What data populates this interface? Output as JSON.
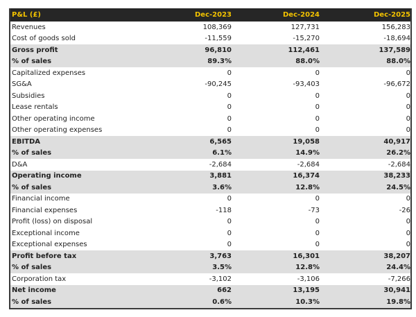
{
  "header": {
    "title": "P&L (£)",
    "columns": [
      "Dec-2023",
      "Dec-2024",
      "Dec-2025"
    ]
  },
  "colors": {
    "header_bg": "#262626",
    "header_text": "#f2c200",
    "subtotal_bg": "#dedede"
  },
  "rows": [
    {
      "label": "Revenues",
      "values": [
        "108,369",
        "127,731",
        "156,283"
      ],
      "bold": false
    },
    {
      "label": "Cost of goods sold",
      "values": [
        "-11,559",
        "-15,270",
        "-18,694"
      ],
      "bold": false
    },
    {
      "label": "Gross profit",
      "values": [
        "96,810",
        "112,461",
        "137,589"
      ],
      "bold": true
    },
    {
      "label": "% of sales",
      "values": [
        "89.3%",
        "88.0%",
        "88.0%"
      ],
      "bold": true
    },
    {
      "label": "Capitalized expenses",
      "values": [
        "0",
        "0",
        "0"
      ],
      "bold": false
    },
    {
      "label": "SG&A",
      "values": [
        "-90,245",
        "-93,403",
        "-96,672"
      ],
      "bold": false
    },
    {
      "label": "Subsidies",
      "values": [
        "0",
        "0",
        "0"
      ],
      "bold": false
    },
    {
      "label": "Lease rentals",
      "values": [
        "0",
        "0",
        "0"
      ],
      "bold": false
    },
    {
      "label": "Other operating income",
      "values": [
        "0",
        "0",
        "0"
      ],
      "bold": false
    },
    {
      "label": "Other operating expenses",
      "values": [
        "0",
        "0",
        "0"
      ],
      "bold": false
    },
    {
      "label": "EBITDA",
      "values": [
        "6,565",
        "19,058",
        "40,917"
      ],
      "bold": true
    },
    {
      "label": "% of sales",
      "values": [
        "6.1%",
        "14.9%",
        "26.2%"
      ],
      "bold": true
    },
    {
      "label": "D&A",
      "values": [
        "-2,684",
        "-2,684",
        "-2,684"
      ],
      "bold": false
    },
    {
      "label": "Operating income",
      "values": [
        "3,881",
        "16,374",
        "38,233"
      ],
      "bold": true
    },
    {
      "label": "% of sales",
      "values": [
        "3.6%",
        "12.8%",
        "24.5%"
      ],
      "bold": true
    },
    {
      "label": "Financial income",
      "values": [
        "0",
        "0",
        "0"
      ],
      "bold": false
    },
    {
      "label": "Financial expenses",
      "values": [
        "-118",
        "-73",
        "-26"
      ],
      "bold": false
    },
    {
      "label": "Profit (loss) on disposal",
      "values": [
        "0",
        "0",
        "0"
      ],
      "bold": false
    },
    {
      "label": "Exceptional income",
      "values": [
        "0",
        "0",
        "0"
      ],
      "bold": false
    },
    {
      "label": "Exceptional expenses",
      "values": [
        "0",
        "0",
        "0"
      ],
      "bold": false
    },
    {
      "label": "Profit before tax",
      "values": [
        "3,763",
        "16,301",
        "38,207"
      ],
      "bold": true
    },
    {
      "label": "% of sales",
      "values": [
        "3.5%",
        "12.8%",
        "24.4%"
      ],
      "bold": true
    },
    {
      "label": "Corporation tax",
      "values": [
        "-3,102",
        "-3,106",
        "-7,266"
      ],
      "bold": false
    },
    {
      "label": "Net income",
      "values": [
        "662",
        "13,195",
        "30,941"
      ],
      "bold": true
    },
    {
      "label": "% of sales",
      "values": [
        "0.6%",
        "10.3%",
        "19.8%"
      ],
      "bold": true
    }
  ]
}
